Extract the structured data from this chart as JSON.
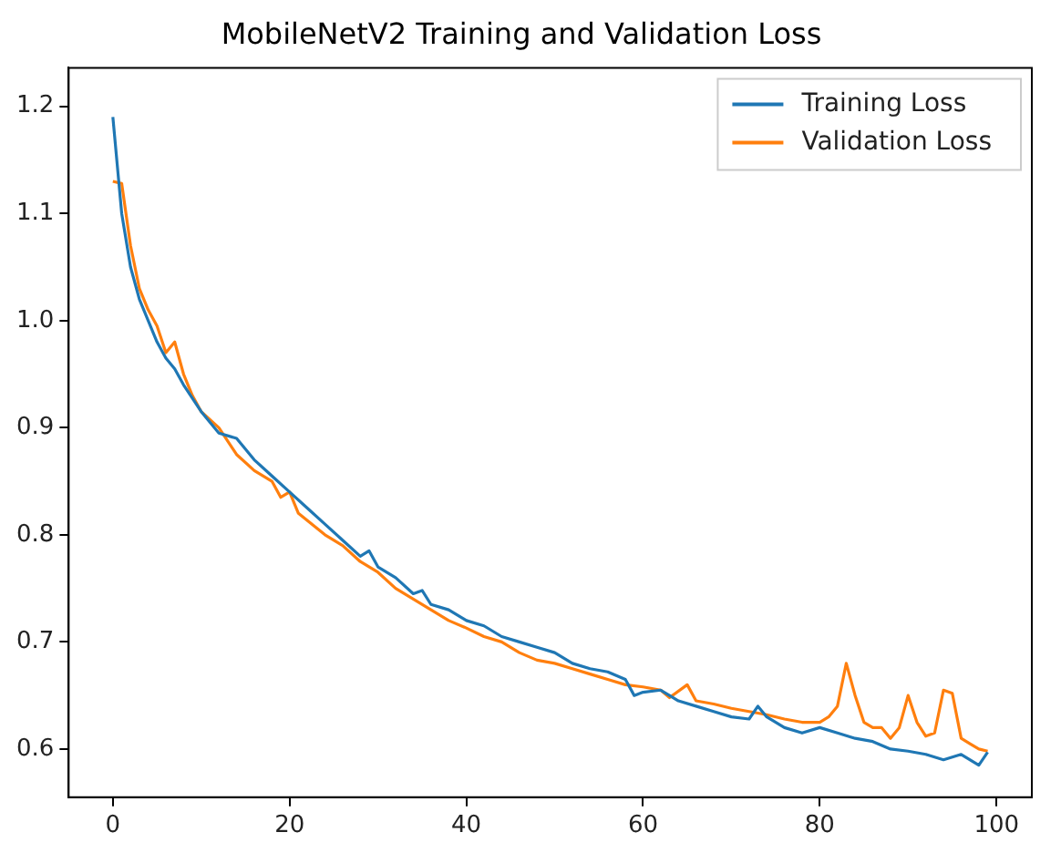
{
  "chart_data": {
    "type": "line",
    "title": "MobileNetV2 Training and Validation Loss",
    "xlim": [
      -5,
      104
    ],
    "xticks": [
      0,
      20,
      40,
      60,
      80,
      100
    ],
    "ylim": [
      0.555,
      1.236
    ],
    "yticks": [
      {
        "value": 0.6,
        "label": "0.6"
      },
      {
        "value": 0.7,
        "label": "0.7"
      },
      {
        "value": 0.8,
        "label": "0.8"
      },
      {
        "value": 0.9,
        "label": "0.9"
      },
      {
        "value": 1.0,
        "label": "1.0"
      },
      {
        "value": 1.1,
        "label": "1.1"
      },
      {
        "value": 1.2,
        "label": "1.2"
      }
    ],
    "grid": false,
    "legend": "top right",
    "marker": "none",
    "line_style": "solid",
    "series": [
      {
        "name": "Training Loss",
        "color": "#1f77b4",
        "x": [
          0,
          1,
          2,
          3,
          4,
          5,
          6,
          7,
          8,
          10,
          12,
          14,
          16,
          18,
          20,
          22,
          24,
          26,
          28,
          29,
          30,
          32,
          34,
          35,
          36,
          38,
          40,
          42,
          44,
          46,
          48,
          50,
          52,
          54,
          56,
          58,
          59,
          60,
          62,
          64,
          66,
          68,
          70,
          72,
          73,
          74,
          76,
          78,
          80,
          82,
          84,
          86,
          88,
          90,
          92,
          94,
          96,
          98,
          99
        ],
        "values": [
          1.19,
          1.1,
          1.05,
          1.02,
          1.0,
          0.98,
          0.965,
          0.955,
          0.94,
          0.915,
          0.895,
          0.89,
          0.87,
          0.855,
          0.84,
          0.825,
          0.81,
          0.795,
          0.78,
          0.785,
          0.77,
          0.76,
          0.745,
          0.748,
          0.735,
          0.73,
          0.72,
          0.715,
          0.705,
          0.7,
          0.695,
          0.69,
          0.68,
          0.675,
          0.672,
          0.665,
          0.65,
          0.653,
          0.655,
          0.645,
          0.64,
          0.635,
          0.63,
          0.628,
          0.64,
          0.63,
          0.62,
          0.615,
          0.62,
          0.615,
          0.61,
          0.607,
          0.6,
          0.598,
          0.595,
          0.59,
          0.595,
          0.585,
          0.597
        ]
      },
      {
        "name": "Validation Loss",
        "color": "#ff7f0e",
        "x": [
          0,
          1,
          2,
          3,
          4,
          5,
          6,
          7,
          8,
          9,
          10,
          12,
          14,
          16,
          18,
          19,
          20,
          21,
          24,
          26,
          28,
          30,
          32,
          34,
          36,
          38,
          40,
          42,
          44,
          46,
          48,
          50,
          52,
          54,
          56,
          58,
          60,
          62,
          63,
          65,
          66,
          68,
          70,
          72,
          74,
          76,
          78,
          80,
          81,
          82,
          83,
          84,
          85,
          86,
          87,
          88,
          89,
          90,
          91,
          92,
          93,
          94,
          95,
          96,
          97,
          98,
          99
        ],
        "values": [
          1.13,
          1.128,
          1.07,
          1.03,
          1.01,
          0.995,
          0.97,
          0.98,
          0.95,
          0.93,
          0.915,
          0.9,
          0.875,
          0.86,
          0.85,
          0.835,
          0.84,
          0.82,
          0.8,
          0.79,
          0.775,
          0.765,
          0.75,
          0.74,
          0.73,
          0.72,
          0.713,
          0.705,
          0.7,
          0.69,
          0.683,
          0.68,
          0.675,
          0.67,
          0.665,
          0.66,
          0.658,
          0.655,
          0.648,
          0.66,
          0.645,
          0.642,
          0.638,
          0.635,
          0.632,
          0.628,
          0.625,
          0.625,
          0.63,
          0.64,
          0.68,
          0.65,
          0.625,
          0.62,
          0.62,
          0.61,
          0.62,
          0.65,
          0.625,
          0.612,
          0.615,
          0.655,
          0.652,
          0.61,
          0.605,
          0.6,
          0.598
        ]
      }
    ]
  }
}
